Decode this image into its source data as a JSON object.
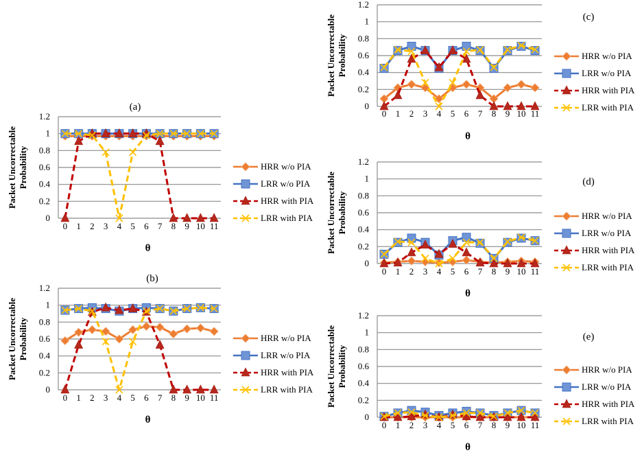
{
  "chart_data": [
    {
      "type": "line",
      "panel_label": "(a)",
      "xlabel": "θ",
      "ylabel_line1": "Packet Uncorrectable",
      "ylabel_line2": "Probability",
      "ylim": [
        0,
        1.2
      ],
      "yticks": [
        "0",
        "0.2",
        "0.4",
        "0.6",
        "0.8",
        "1",
        "1.2"
      ],
      "categories": [
        "0",
        "1",
        "2",
        "3",
        "4",
        "5",
        "6",
        "7",
        "8",
        "9",
        "10",
        "11"
      ],
      "grid": true,
      "legend": "right",
      "series": [
        {
          "name": "HRR w/o PIA",
          "values": [
            0.97,
            0.97,
            0.97,
            0.97,
            0.97,
            0.97,
            0.97,
            0.97,
            0.97,
            0.97,
            0.97,
            0.97
          ]
        },
        {
          "name": "LRR w/o PIA",
          "values": [
            1.0,
            1.0,
            1.0,
            1.0,
            1.0,
            1.0,
            1.0,
            1.0,
            1.0,
            1.0,
            1.0,
            1.0
          ]
        },
        {
          "name": "HRR with PIA",
          "values": [
            0.0,
            0.91,
            1.0,
            1.0,
            1.0,
            1.0,
            1.0,
            0.91,
            0.0,
            0.0,
            0.0,
            0.0
          ]
        },
        {
          "name": "LRR with PIA",
          "values": [
            1.0,
            1.0,
            0.98,
            0.78,
            0.0,
            0.78,
            0.98,
            1.0,
            1.0,
            1.0,
            1.0,
            1.0
          ]
        }
      ]
    },
    {
      "type": "line",
      "panel_label": "(b)",
      "xlabel": "θ",
      "ylabel_line1": "Packet Uncorrectable",
      "ylabel_line2": "Probability",
      "ylim": [
        0,
        1.2
      ],
      "yticks": [
        "0",
        "0.2",
        "0.4",
        "0.6",
        "0.8",
        "1",
        "1.2"
      ],
      "categories": [
        "0",
        "1",
        "2",
        "3",
        "4",
        "5",
        "6",
        "7",
        "8",
        "9",
        "10",
        "11"
      ],
      "grid": true,
      "legend": "right",
      "series": [
        {
          "name": "HRR w/o PIA",
          "values": [
            0.58,
            0.68,
            0.71,
            0.69,
            0.6,
            0.71,
            0.75,
            0.74,
            0.66,
            0.72,
            0.73,
            0.69
          ]
        },
        {
          "name": "LRR w/o PIA",
          "values": [
            0.94,
            0.96,
            0.97,
            0.96,
            0.93,
            0.96,
            0.97,
            0.96,
            0.93,
            0.96,
            0.97,
            0.96
          ]
        },
        {
          "name": "HRR with PIA",
          "values": [
            0.0,
            0.53,
            0.92,
            0.97,
            0.94,
            0.96,
            0.92,
            0.53,
            0.0,
            0.0,
            0.0,
            0.0
          ]
        },
        {
          "name": "LRR with PIA",
          "values": [
            0.94,
            0.96,
            0.93,
            0.57,
            0.0,
            0.57,
            0.93,
            0.96,
            0.93,
            0.96,
            0.97,
            0.96
          ]
        }
      ]
    },
    {
      "type": "line",
      "panel_label": "(c)",
      "xlabel": "θ",
      "ylabel_line1": "Packet Uncorrectable",
      "ylabel_line2": "Probability",
      "ylim": [
        0,
        1.2
      ],
      "yticks": [
        "0",
        "0.2",
        "0.4",
        "0.6",
        "0.8",
        "1",
        "1.2"
      ],
      "categories": [
        "0",
        "1",
        "2",
        "3",
        "4",
        "5",
        "6",
        "7",
        "8",
        "9",
        "10",
        "11"
      ],
      "grid": true,
      "legend": "right",
      "series": [
        {
          "name": "HRR w/o PIA",
          "values": [
            0.09,
            0.22,
            0.26,
            0.22,
            0.09,
            0.22,
            0.26,
            0.22,
            0.09,
            0.22,
            0.26,
            0.22
          ]
        },
        {
          "name": "LRR w/o PIA",
          "values": [
            0.45,
            0.66,
            0.71,
            0.66,
            0.45,
            0.66,
            0.71,
            0.66,
            0.45,
            0.66,
            0.71,
            0.66
          ]
        },
        {
          "name": "HRR with PIA",
          "values": [
            0.0,
            0.13,
            0.56,
            0.66,
            0.46,
            0.66,
            0.56,
            0.13,
            0.0,
            0.0,
            0.0,
            0.0
          ]
        },
        {
          "name": "LRR with PIA",
          "values": [
            0.46,
            0.67,
            0.65,
            0.28,
            0.0,
            0.28,
            0.65,
            0.67,
            0.46,
            0.67,
            0.72,
            0.67
          ]
        }
      ]
    },
    {
      "type": "line",
      "panel_label": "(d)",
      "xlabel": "θ",
      "ylabel_line1": "Packet Uncorrectable",
      "ylabel_line2": "Probability",
      "ylim": [
        0,
        1.2
      ],
      "yticks": [
        "0",
        "0.2",
        "0.4",
        "0.6",
        "0.8",
        "1",
        "1.2"
      ],
      "categories": [
        "0",
        "1",
        "2",
        "3",
        "4",
        "5",
        "6",
        "7",
        "8",
        "9",
        "10",
        "11"
      ],
      "grid": true,
      "legend": "right",
      "series": [
        {
          "name": "HRR w/o PIA",
          "values": [
            0.01,
            0.02,
            0.03,
            0.02,
            0.01,
            0.02,
            0.04,
            0.02,
            0.01,
            0.02,
            0.03,
            0.02
          ]
        },
        {
          "name": "LRR w/o PIA",
          "values": [
            0.11,
            0.25,
            0.3,
            0.25,
            0.1,
            0.27,
            0.31,
            0.24,
            0.06,
            0.25,
            0.3,
            0.27
          ]
        },
        {
          "name": "HRR with PIA",
          "values": [
            0.0,
            0.01,
            0.13,
            0.22,
            0.11,
            0.23,
            0.13,
            0.01,
            0.0,
            0.0,
            0.0,
            0.0
          ]
        },
        {
          "name": "LRR with PIA",
          "values": [
            0.11,
            0.26,
            0.25,
            0.06,
            0.0,
            0.06,
            0.25,
            0.25,
            0.06,
            0.26,
            0.31,
            0.27
          ]
        }
      ]
    },
    {
      "type": "line",
      "panel_label": "(e)",
      "xlabel": "θ",
      "ylabel_line1": "Packet Uncorrectable",
      "ylabel_line2": "Probability",
      "ylim": [
        0,
        1.2
      ],
      "yticks": [
        "0",
        "0.2",
        "0.4",
        "0.6",
        "0.8",
        "1",
        "1.2"
      ],
      "categories": [
        "0",
        "1",
        "2",
        "3",
        "4",
        "5",
        "6",
        "7",
        "8",
        "9",
        "10",
        "11"
      ],
      "grid": true,
      "legend": "right",
      "series": [
        {
          "name": "HRR w/o PIA",
          "values": [
            0.0,
            0.0,
            0.0,
            0.0,
            0.0,
            0.0,
            0.0,
            0.0,
            0.0,
            0.0,
            0.0,
            0.0
          ]
        },
        {
          "name": "LRR w/o PIA",
          "values": [
            0.01,
            0.05,
            0.08,
            0.06,
            0.02,
            0.05,
            0.07,
            0.05,
            0.02,
            0.05,
            0.08,
            0.05
          ]
        },
        {
          "name": "HRR with PIA",
          "values": [
            0.0,
            0.0,
            0.01,
            0.03,
            0.0,
            0.03,
            0.01,
            0.0,
            0.0,
            0.0,
            0.0,
            0.0
          ]
        },
        {
          "name": "LRR with PIA",
          "values": [
            0.01,
            0.05,
            0.06,
            0.02,
            0.0,
            0.02,
            0.05,
            0.05,
            0.01,
            0.05,
            0.08,
            0.05
          ]
        }
      ]
    }
  ],
  "series_styles": [
    {
      "name": "HRR w/o PIA",
      "color": "#ED7D31",
      "marker": "diamond",
      "dashed": false
    },
    {
      "name": "LRR w/o PIA",
      "color": "#4472C4",
      "marker": "square",
      "dashed": false
    },
    {
      "name": "HRR with PIA",
      "color": "#C00000",
      "marker": "triangle",
      "dashed": true
    },
    {
      "name": "LRR with PIA",
      "color": "#FFC000",
      "marker": "x",
      "dashed": true
    }
  ]
}
